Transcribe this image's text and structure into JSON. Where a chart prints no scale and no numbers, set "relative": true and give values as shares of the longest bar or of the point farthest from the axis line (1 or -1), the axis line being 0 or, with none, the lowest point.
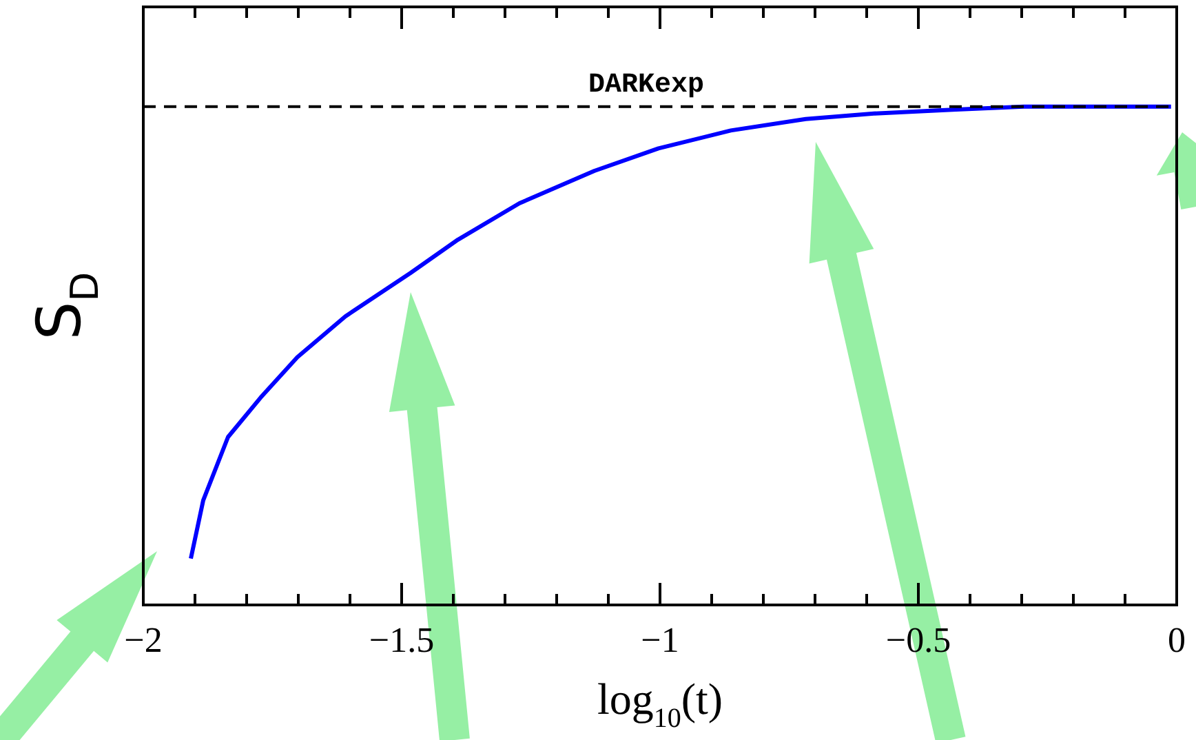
{
  "chart_data": {
    "type": "line",
    "xlabel": "log$_{10}$(t)",
    "ylabel": "S$_{D}$",
    "relative": true,
    "x": [
      -1.908,
      -1.884,
      -1.836,
      -1.773,
      -1.702,
      -1.609,
      -1.483,
      -1.391,
      -1.272,
      -1.127,
      -1.003,
      -0.863,
      -0.718,
      -0.586,
      -0.427,
      -0.296,
      -0.164,
      -0.011
    ],
    "series": [
      {
        "color": "#0000ff",
        "values": [
          0.093,
          0.21,
          0.337,
          0.416,
          0.497,
          0.579,
          0.666,
          0.733,
          0.806,
          0.871,
          0.916,
          0.952,
          0.975,
          0.986,
          0.994,
          1.0,
          1.0,
          1.0
        ]
      }
    ],
    "xlim": [
      -2,
      0
    ],
    "xticks": [
      -2,
      {
        "value": -1.9,
        "label": null
      },
      {
        "value": -1.8,
        "label": null
      },
      {
        "value": -1.7,
        "label": null
      },
      {
        "value": -1.6,
        "label": null
      },
      -1.5,
      {
        "value": -1.4,
        "label": null
      },
      {
        "value": -1.3,
        "label": null
      },
      {
        "value": -1.2,
        "label": null
      },
      {
        "value": -1.1,
        "label": null
      },
      -1,
      {
        "value": -0.9,
        "label": null
      },
      {
        "value": -0.8,
        "label": null
      },
      {
        "value": -0.7,
        "label": null
      },
      {
        "value": -0.6,
        "label": null
      },
      -0.5,
      {
        "value": -0.4,
        "label": null
      },
      {
        "value": -0.3,
        "label": null
      },
      {
        "value": -0.2,
        "label": null
      },
      {
        "value": -0.1,
        "label": null
      },
      0
    ],
    "ref_lines": [
      {
        "axis": "y",
        "value": 1,
        "label": "DARKexp",
        "line_style": "dashed",
        "color": "#000000"
      }
    ],
    "tick_labels": "x",
    "grid": false,
    "legend": false,
    "marker": "none",
    "line_style": "solid"
  }
}
